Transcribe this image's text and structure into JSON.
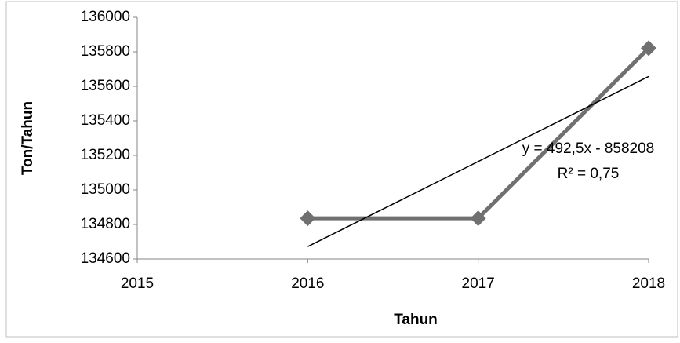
{
  "chart_data": {
    "type": "line",
    "x_label": "Tahun",
    "y_label": "Ton/Tahun",
    "x": [
      2016,
      2017,
      2018
    ],
    "series": [
      {
        "color": "#707070",
        "values": [
          134836,
          134836,
          135821
        ]
      }
    ],
    "trendline": {
      "color": "#000000",
      "x": [
        2016,
        2018
      ],
      "values": [
        134672,
        135657
      ]
    },
    "annotations": [
      "y = 492,5x - 858208",
      "R² = 0,75"
    ],
    "xlim": [
      2015,
      2018
    ],
    "xticks": [
      2015,
      2016,
      2017,
      2018
    ],
    "ylim": [
      134600,
      136000
    ],
    "yticks": [
      134600,
      134800,
      135000,
      135200,
      135400,
      135600,
      135800,
      136000
    ],
    "grid": false
  }
}
